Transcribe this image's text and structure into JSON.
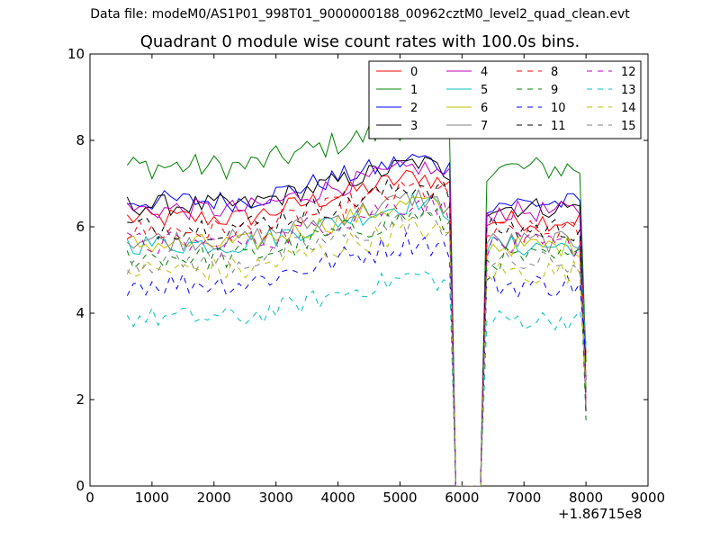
{
  "header": {
    "suptitle": "Data file: modeM0/AS1P01_998T01_9000000188_00962cztM0_level2_quad_clean.evt",
    "title": "Quadrant 0 module wise count rates with 100.0s bins."
  },
  "chart_data": {
    "type": "line",
    "title": "Quadrant 0 module wise count rates with 100.0s bins.",
    "xlabel": "",
    "ylabel": "",
    "x_offset_label": "+1.86715e8",
    "xlim": [
      0,
      9000
    ],
    "ylim": [
      0,
      10
    ],
    "xticks": [
      0,
      1000,
      2000,
      3000,
      4000,
      5000,
      6000,
      7000,
      8000,
      9000
    ],
    "yticks": [
      0,
      2,
      4,
      6,
      8,
      10
    ],
    "legend_position": "top-right",
    "legend_columns": 4,
    "series": [
      {
        "name": "0",
        "color": "#ff0000",
        "dash": "solid",
        "base": 6.2,
        "noise": 0.25
      },
      {
        "name": "1",
        "color": "#008000",
        "dash": "solid",
        "base": 7.4,
        "noise": 0.3
      },
      {
        "name": "2",
        "color": "#0000ff",
        "dash": "solid",
        "base": 6.6,
        "noise": 0.25
      },
      {
        "name": "3",
        "color": "#000000",
        "dash": "solid",
        "base": 6.5,
        "noise": 0.25
      },
      {
        "name": "4",
        "color": "#bf00bf",
        "dash": "solid",
        "base": 6.4,
        "noise": 0.25
      },
      {
        "name": "5",
        "color": "#00bfbf",
        "dash": "solid",
        "base": 5.6,
        "noise": 0.25
      },
      {
        "name": "6",
        "color": "#bfbf00",
        "dash": "solid",
        "base": 5.6,
        "noise": 0.25
      },
      {
        "name": "7",
        "color": "#808080",
        "dash": "solid",
        "base": 5.7,
        "noise": 0.25
      },
      {
        "name": "8",
        "color": "#ff0000",
        "dash": "dashed",
        "base": 5.9,
        "noise": 0.3
      },
      {
        "name": "9",
        "color": "#008000",
        "dash": "dashed",
        "base": 5.3,
        "noise": 0.3
      },
      {
        "name": "10",
        "color": "#0000ff",
        "dash": "dashed",
        "base": 4.7,
        "noise": 0.3
      },
      {
        "name": "11",
        "color": "#000000",
        "dash": "dashed",
        "base": 6.0,
        "noise": 0.3
      },
      {
        "name": "12",
        "color": "#bf00bf",
        "dash": "dashed",
        "base": 5.6,
        "noise": 0.3
      },
      {
        "name": "13",
        "color": "#00bfbf",
        "dash": "dashed",
        "base": 3.9,
        "noise": 0.25
      },
      {
        "name": "14",
        "color": "#bfbf00",
        "dash": "dashed",
        "base": 5.0,
        "noise": 0.3
      },
      {
        "name": "15",
        "color": "#808080",
        "dash": "dashed",
        "base": 5.2,
        "noise": 0.3
      }
    ],
    "x_start": 600,
    "x_step": 100,
    "gap_x": [
      5900,
      6300
    ],
    "end_x": 8000,
    "end_value_range": [
      1.5,
      3.5
    ]
  }
}
